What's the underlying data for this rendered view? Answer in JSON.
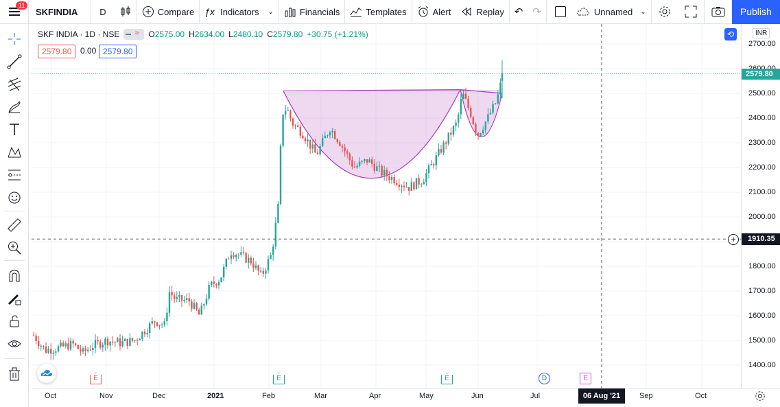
{
  "toolbar": {
    "menu_badge": "11",
    "symbol": "SKFINDIA",
    "interval": "D",
    "compare": "Compare",
    "indicators": "Indicators",
    "financials": "Financials",
    "templates": "Templates",
    "alert": "Alert",
    "replay": "Replay",
    "layout_name": "Unnamed",
    "publish": "Publish"
  },
  "legend": {
    "title": "SKF INDIA · 1D · NSE",
    "open_label": "O",
    "open": "2575.00",
    "high_label": "H",
    "high": "2634.00",
    "low_label": "L",
    "low": "2480.10",
    "close_label": "C",
    "close": "2579.80",
    "change": "+30.75 (+1.21%)"
  },
  "price_boxes": {
    "bid": "2579.80",
    "spread": "0.00",
    "ask": "2579.80"
  },
  "price_scale": {
    "currency": "INR",
    "ticks": [
      "2700.00",
      "2600.00",
      "2500.00",
      "2400.00",
      "2300.00",
      "2200.00",
      "2100.00",
      "2000.00",
      "1900.00",
      "1800.00",
      "1700.00",
      "1600.00",
      "1500.00",
      "1400.00"
    ],
    "last_price_label": "2579.80",
    "crosshair_price": "1910.35"
  },
  "time_axis": {
    "labels": [
      "Oct",
      "Nov",
      "Dec",
      "2021",
      "Feb",
      "Mar",
      "Apr",
      "May",
      "Jun",
      "Jul",
      "Sep",
      "Oct"
    ],
    "crosshair_date": "06 Aug '21"
  },
  "events": [
    "E",
    "E",
    "E",
    "D",
    "E"
  ],
  "colors": {
    "up": "#26a69a",
    "down": "#ef5350",
    "pattern": "#ce93d8",
    "accent": "#2962ff"
  }
}
